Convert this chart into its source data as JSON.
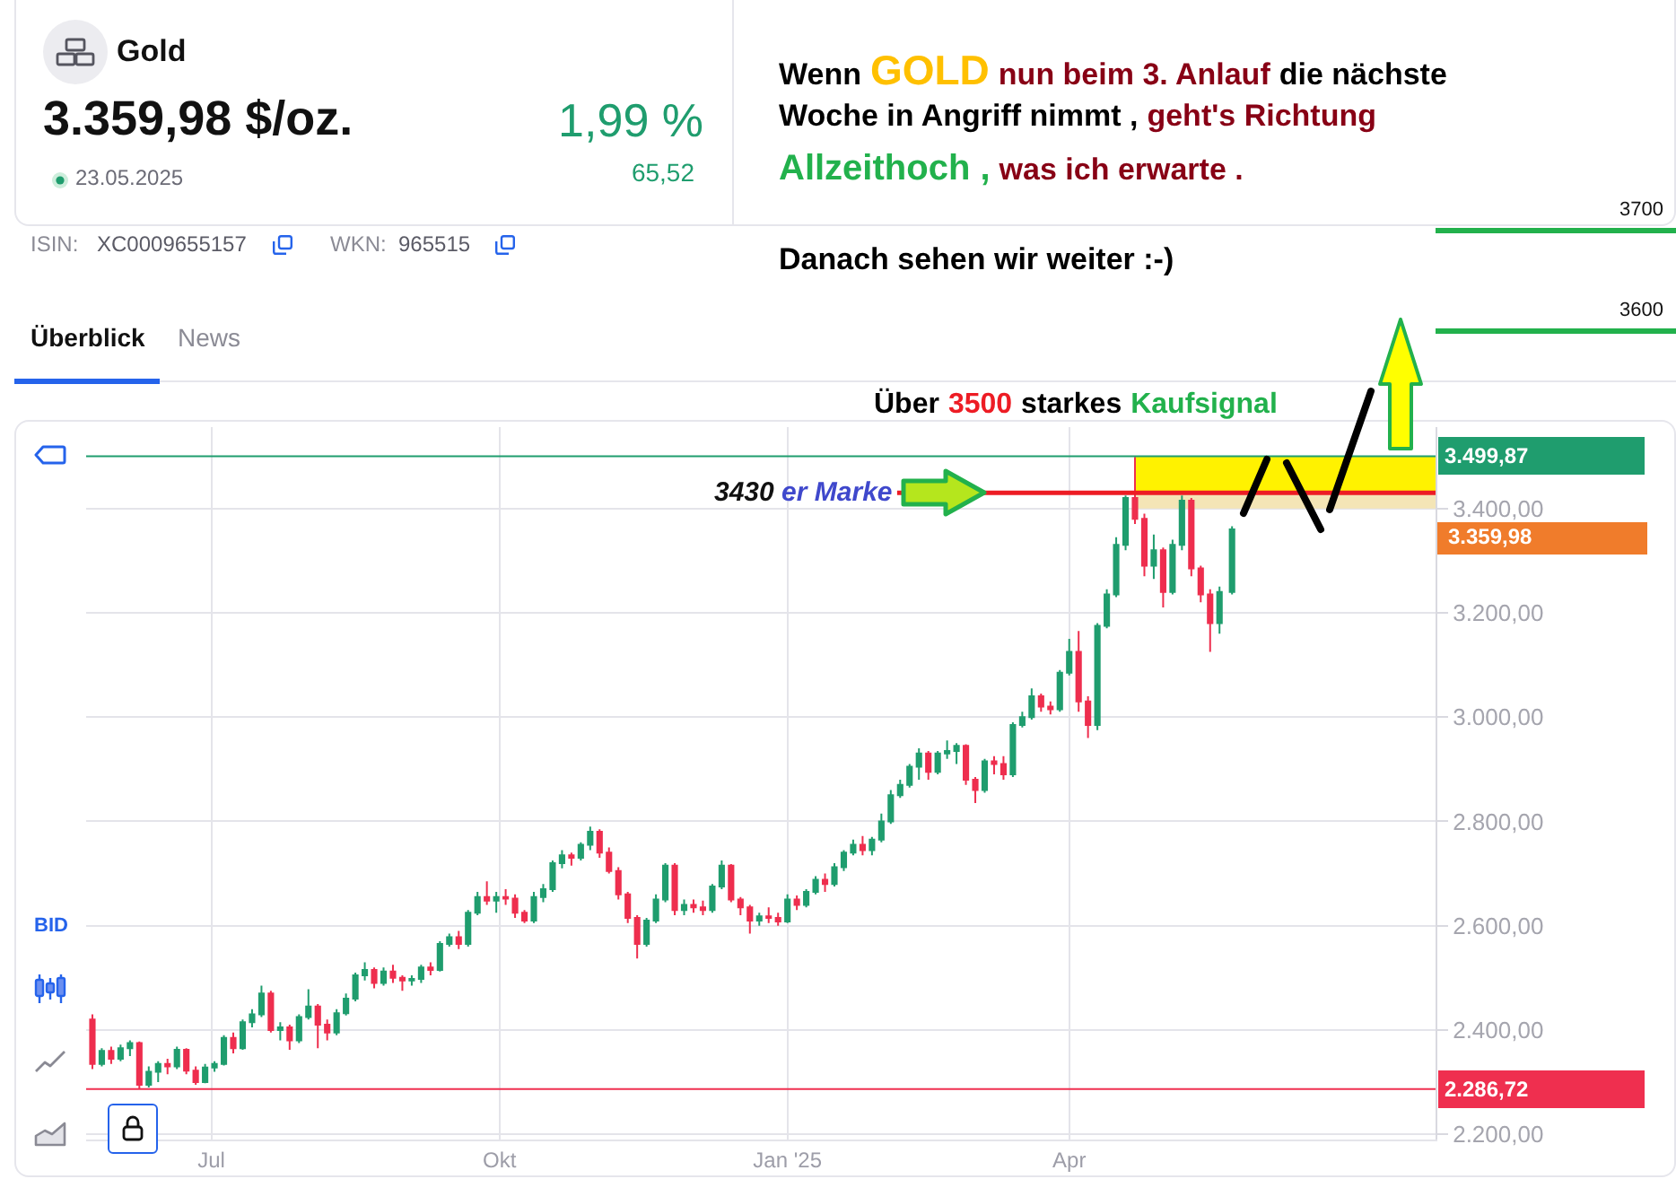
{
  "chart_data": {
    "type": "candlestick",
    "title": "Gold",
    "subtitle": "3.359,98 $/oz.",
    "x": [
      "2024-05-24",
      "2024-05-27",
      "2024-05-30",
      "2024-06-02",
      "2024-06-05",
      "2024-06-08",
      "2024-06-11",
      "2024-06-14",
      "2024-06-17",
      "2024-06-20",
      "2024-06-23",
      "2024-06-26",
      "2024-06-29",
      "2024-07-02",
      "2024-07-05",
      "2024-07-08",
      "2024-07-11",
      "2024-07-14",
      "2024-07-17",
      "2024-07-20",
      "2024-07-23",
      "2024-07-26",
      "2024-07-29",
      "2024-08-01",
      "2024-08-04",
      "2024-08-07",
      "2024-08-10",
      "2024-08-13",
      "2024-08-16",
      "2024-08-19",
      "2024-08-22",
      "2024-08-25",
      "2024-08-28",
      "2024-08-31",
      "2024-09-03",
      "2024-09-06",
      "2024-09-09",
      "2024-09-12",
      "2024-09-15",
      "2024-09-18",
      "2024-09-21",
      "2024-09-24",
      "2024-09-27",
      "2024-09-30",
      "2024-10-03",
      "2024-10-06",
      "2024-10-09",
      "2024-10-12",
      "2024-10-15",
      "2024-10-18",
      "2024-10-21",
      "2024-10-24",
      "2024-10-27",
      "2024-10-30",
      "2024-11-02",
      "2024-11-05",
      "2024-11-08",
      "2024-11-11",
      "2024-11-14",
      "2024-11-17",
      "2024-11-20",
      "2024-11-23",
      "2024-11-26",
      "2024-11-29",
      "2024-12-02",
      "2024-12-05",
      "2024-12-08",
      "2024-12-11",
      "2024-12-14",
      "2024-12-17",
      "2024-12-20",
      "2024-12-23",
      "2024-12-26",
      "2024-12-29",
      "2025-01-01",
      "2025-01-04",
      "2025-01-07",
      "2025-01-10",
      "2025-01-13",
      "2025-01-16",
      "2025-01-19",
      "2025-01-22",
      "2025-01-25",
      "2025-01-28",
      "2025-01-31",
      "2025-02-03",
      "2025-02-06",
      "2025-02-09",
      "2025-02-12",
      "2025-02-15",
      "2025-02-18",
      "2025-02-21",
      "2025-02-24",
      "2025-02-27",
      "2025-03-02",
      "2025-03-05",
      "2025-03-08",
      "2025-03-11",
      "2025-03-14",
      "2025-03-17",
      "2025-03-20",
      "2025-03-23",
      "2025-03-26",
      "2025-03-29",
      "2025-04-01",
      "2025-04-04",
      "2025-04-07",
      "2025-04-10",
      "2025-04-13",
      "2025-04-16",
      "2025-04-19",
      "2025-04-22",
      "2025-04-25",
      "2025-04-28",
      "2025-05-01",
      "2025-05-04",
      "2025-05-07",
      "2025-05-10",
      "2025-05-13",
      "2025-05-16",
      "2025-05-19",
      "2025-05-23"
    ],
    "ohlc": [
      [
        2420,
        2430,
        2325,
        2335
      ],
      [
        2335,
        2365,
        2330,
        2360
      ],
      [
        2360,
        2368,
        2335,
        2345
      ],
      [
        2345,
        2372,
        2340,
        2365
      ],
      [
        2365,
        2380,
        2350,
        2375
      ],
      [
        2375,
        2378,
        2288,
        2295
      ],
      [
        2295,
        2330,
        2290,
        2320
      ],
      [
        2320,
        2340,
        2300,
        2335
      ],
      [
        2335,
        2345,
        2315,
        2330
      ],
      [
        2330,
        2368,
        2325,
        2362
      ],
      [
        2362,
        2365,
        2315,
        2322
      ],
      [
        2322,
        2330,
        2295,
        2300
      ],
      [
        2300,
        2335,
        2298,
        2328
      ],
      [
        2328,
        2340,
        2320,
        2335
      ],
      [
        2335,
        2390,
        2332,
        2385
      ],
      [
        2385,
        2395,
        2355,
        2365
      ],
      [
        2365,
        2420,
        2362,
        2415
      ],
      [
        2415,
        2440,
        2405,
        2430
      ],
      [
        2430,
        2485,
        2425,
        2470
      ],
      [
        2470,
        2475,
        2395,
        2400
      ],
      [
        2400,
        2415,
        2380,
        2405
      ],
      [
        2405,
        2410,
        2362,
        2380
      ],
      [
        2380,
        2430,
        2375,
        2425
      ],
      [
        2425,
        2478,
        2420,
        2445
      ],
      [
        2445,
        2450,
        2365,
        2410
      ],
      [
        2410,
        2420,
        2380,
        2395
      ],
      [
        2395,
        2440,
        2390,
        2432
      ],
      [
        2432,
        2470,
        2428,
        2460
      ],
      [
        2460,
        2510,
        2455,
        2505
      ],
      [
        2505,
        2530,
        2495,
        2515
      ],
      [
        2515,
        2520,
        2480,
        2490
      ],
      [
        2490,
        2520,
        2485,
        2512
      ],
      [
        2512,
        2525,
        2490,
        2500
      ],
      [
        2500,
        2505,
        2475,
        2495
      ],
      [
        2495,
        2505,
        2485,
        2498
      ],
      [
        2498,
        2525,
        2490,
        2520
      ],
      [
        2520,
        2530,
        2505,
        2515
      ],
      [
        2515,
        2570,
        2512,
        2565
      ],
      [
        2565,
        2585,
        2560,
        2578
      ],
      [
        2578,
        2590,
        2555,
        2565
      ],
      [
        2565,
        2630,
        2560,
        2625
      ],
      [
        2625,
        2665,
        2620,
        2655
      ],
      [
        2655,
        2685,
        2640,
        2648
      ],
      [
        2648,
        2665,
        2625,
        2655
      ],
      [
        2655,
        2670,
        2640,
        2652
      ],
      [
        2652,
        2660,
        2615,
        2625
      ],
      [
        2625,
        2630,
        2605,
        2610
      ],
      [
        2610,
        2665,
        2605,
        2655
      ],
      [
        2655,
        2680,
        2645,
        2670
      ],
      [
        2670,
        2725,
        2665,
        2720
      ],
      [
        2720,
        2745,
        2710,
        2735
      ],
      [
        2735,
        2740,
        2715,
        2730
      ],
      [
        2730,
        2760,
        2725,
        2755
      ],
      [
        2755,
        2790,
        2745,
        2780
      ],
      [
        2780,
        2785,
        2730,
        2740
      ],
      [
        2740,
        2750,
        2700,
        2705
      ],
      [
        2705,
        2712,
        2650,
        2660
      ],
      [
        2660,
        2665,
        2605,
        2615
      ],
      [
        2615,
        2620,
        2537,
        2565
      ],
      [
        2565,
        2615,
        2560,
        2610
      ],
      [
        2610,
        2660,
        2605,
        2650
      ],
      [
        2650,
        2720,
        2645,
        2715
      ],
      [
        2715,
        2720,
        2620,
        2630
      ],
      [
        2630,
        2650,
        2620,
        2640
      ],
      [
        2640,
        2650,
        2625,
        2635
      ],
      [
        2635,
        2648,
        2620,
        2630
      ],
      [
        2630,
        2680,
        2625,
        2675
      ],
      [
        2675,
        2725,
        2670,
        2715
      ],
      [
        2715,
        2718,
        2645,
        2650
      ],
      [
        2650,
        2655,
        2620,
        2635
      ],
      [
        2635,
        2640,
        2585,
        2610
      ],
      [
        2610,
        2625,
        2600,
        2618
      ],
      [
        2618,
        2635,
        2605,
        2615
      ],
      [
        2615,
        2625,
        2600,
        2608
      ],
      [
        2608,
        2660,
        2605,
        2650
      ],
      [
        2650,
        2658,
        2630,
        2640
      ],
      [
        2640,
        2670,
        2635,
        2665
      ],
      [
        2665,
        2695,
        2660,
        2688
      ],
      [
        2688,
        2700,
        2665,
        2680
      ],
      [
        2680,
        2720,
        2675,
        2712
      ],
      [
        2712,
        2745,
        2705,
        2740
      ],
      [
        2740,
        2765,
        2735,
        2755
      ],
      [
        2755,
        2772,
        2735,
        2745
      ],
      [
        2745,
        2770,
        2735,
        2765
      ],
      [
        2765,
        2815,
        2760,
        2800
      ],
      [
        2800,
        2860,
        2795,
        2850
      ],
      [
        2850,
        2880,
        2845,
        2870
      ],
      [
        2870,
        2910,
        2865,
        2905
      ],
      [
        2905,
        2940,
        2880,
        2930
      ],
      [
        2930,
        2935,
        2880,
        2895
      ],
      [
        2895,
        2935,
        2890,
        2930
      ],
      [
        2930,
        2955,
        2920,
        2935
      ],
      [
        2935,
        2950,
        2910,
        2945
      ],
      [
        2945,
        2948,
        2870,
        2880
      ],
      [
        2880,
        2885,
        2835,
        2860
      ],
      [
        2860,
        2920,
        2855,
        2915
      ],
      [
        2915,
        2925,
        2890,
        2910
      ],
      [
        2910,
        2925,
        2880,
        2890
      ],
      [
        2890,
        2990,
        2885,
        2985
      ],
      [
        2985,
        3010,
        2980,
        3000
      ],
      [
        3000,
        3055,
        2995,
        3040
      ],
      [
        3040,
        3045,
        3010,
        3020
      ],
      [
        3020,
        3030,
        3005,
        3015
      ],
      [
        3015,
        3090,
        3010,
        3085
      ],
      [
        3085,
        3150,
        3080,
        3125
      ],
      [
        3125,
        3165,
        3010,
        3030
      ],
      [
        3030,
        3040,
        2960,
        2985
      ],
      [
        2985,
        3180,
        2975,
        3175
      ],
      [
        3175,
        3245,
        3170,
        3235
      ],
      [
        3235,
        3345,
        3230,
        3330
      ],
      [
        3330,
        3425,
        3320,
        3420
      ],
      [
        3420,
        3499,
        3370,
        3380
      ],
      [
        3380,
        3390,
        3270,
        3290
      ],
      [
        3290,
        3350,
        3265,
        3320
      ],
      [
        3320,
        3325,
        3210,
        3240
      ],
      [
        3240,
        3340,
        3235,
        3330
      ],
      [
        3330,
        3425,
        3320,
        3415
      ],
      [
        3415,
        3420,
        3270,
        3285
      ],
      [
        3285,
        3290,
        3220,
        3235
      ],
      [
        3235,
        3245,
        3125,
        3180
      ],
      [
        3180,
        3250,
        3160,
        3240
      ],
      [
        3240,
        3366,
        3235,
        3359.98
      ]
    ],
    "colors": [
      "#ee2e4e",
      "#1f9d6e",
      "#ee2e4e",
      "#1f9d6e",
      "#1f9d6e",
      "#ee2e4e",
      "#1f9d6e",
      "#1f9d6e",
      "#ee2e4e",
      "#1f9d6e",
      "#ee2e4e",
      "#ee2e4e",
      "#1f9d6e",
      "#1f9d6e",
      "#1f9d6e",
      "#ee2e4e",
      "#1f9d6e",
      "#1f9d6e",
      "#1f9d6e",
      "#ee2e4e",
      "#1f9d6e",
      "#ee2e4e",
      "#1f9d6e",
      "#1f9d6e",
      "#ee2e4e",
      "#ee2e4e",
      "#1f9d6e",
      "#1f9d6e",
      "#1f9d6e",
      "#1f9d6e",
      "#ee2e4e",
      "#1f9d6e",
      "#ee2e4e",
      "#ee2e4e",
      "#1f9d6e",
      "#1f9d6e",
      "#ee2e4e",
      "#1f9d6e",
      "#1f9d6e",
      "#ee2e4e",
      "#1f9d6e",
      "#1f9d6e",
      "#ee2e4e",
      "#1f9d6e",
      "#ee2e4e",
      "#ee2e4e",
      "#ee2e4e",
      "#1f9d6e",
      "#1f9d6e",
      "#1f9d6e",
      "#1f9d6e",
      "#ee2e4e",
      "#1f9d6e",
      "#1f9d6e",
      "#ee2e4e",
      "#ee2e4e",
      "#ee2e4e",
      "#ee2e4e",
      "#ee2e4e",
      "#1f9d6e",
      "#1f9d6e",
      "#1f9d6e",
      "#ee2e4e",
      "#1f9d6e",
      "#ee2e4e",
      "#ee2e4e",
      "#1f9d6e",
      "#1f9d6e",
      "#ee2e4e",
      "#ee2e4e",
      "#ee2e4e",
      "#1f9d6e",
      "#ee2e4e",
      "#ee2e4e",
      "#1f9d6e",
      "#ee2e4e",
      "#1f9d6e",
      "#1f9d6e",
      "#ee2e4e",
      "#1f9d6e",
      "#1f9d6e",
      "#1f9d6e",
      "#ee2e4e",
      "#1f9d6e",
      "#1f9d6e",
      "#1f9d6e",
      "#1f9d6e",
      "#1f9d6e",
      "#1f9d6e",
      "#ee2e4e",
      "#1f9d6e",
      "#1f9d6e",
      "#1f9d6e",
      "#ee2e4e",
      "#ee2e4e",
      "#1f9d6e",
      "#ee2e4e",
      "#ee2e4e",
      "#1f9d6e",
      "#1f9d6e",
      "#1f9d6e",
      "#ee2e4e",
      "#ee2e4e",
      "#1f9d6e",
      "#1f9d6e",
      "#ee2e4e",
      "#ee2e4e",
      "#1f9d6e",
      "#1f9d6e",
      "#1f9d6e",
      "#1f9d6e",
      "#ee2e4e",
      "#ee2e4e",
      "#1f9d6e",
      "#ee2e4e",
      "#1f9d6e",
      "#1f9d6e",
      "#ee2e4e",
      "#ee2e4e",
      "#ee2e4e",
      "#1f9d6e",
      "#1f9d6e"
    ],
    "xlim": [
      "2024-05-22",
      "2025-07-27"
    ],
    "xticks": [
      {
        "value": "2024-07-01",
        "label": "Jul"
      },
      {
        "value": "2024-10-01",
        "label": "Okt"
      },
      {
        "value": "2025-01-01",
        "label": "Jan '25"
      },
      {
        "value": "2025-04-01",
        "label": "Apr"
      }
    ],
    "ylim": [
      2190,
      3556
    ],
    "yticks": [
      {
        "value": 2200,
        "label": "2.200,00"
      },
      {
        "value": 2400,
        "label": "2.400,00"
      },
      {
        "value": 2600,
        "label": "2.600,00"
      },
      {
        "value": 2800,
        "label": "2.800,00"
      },
      {
        "value": 3000,
        "label": "3.000,00"
      },
      {
        "value": 3200,
        "label": "3.200,00"
      },
      {
        "value": 3400,
        "label": "3.400,00"
      }
    ],
    "grid": true,
    "ref_lines": [
      {
        "axis": "y",
        "value": 3499.87,
        "label": "3.499,87",
        "color": "#1f9d6e"
      },
      {
        "axis": "y",
        "value": 3430,
        "label": "3430 er Marke",
        "color": "#ed1c24"
      },
      {
        "axis": "y",
        "value": 2286.72,
        "label": "2.286,72",
        "color": "#ef2f4f"
      }
    ],
    "bands": [
      {
        "axis": "y",
        "from": 3430,
        "to": 3499.87,
        "color": "#fff200"
      },
      {
        "axis": "y",
        "from": 3400,
        "to": 3430,
        "color": "#f4e5b6"
      }
    ],
    "annotations": [
      "1,99 %",
      "65,52",
      "23.05.2025",
      "ISIN:",
      "XC0009655157",
      "WKN:",
      "965515",
      "Überblick",
      "News",
      "Wenn",
      "GOLD",
      "nun beim 3. Anlauf",
      "die nächste",
      "Woche in Angriff nimmt ,",
      "geht's Richtung",
      "Allzeithoch ,",
      "was ich erwarte .",
      "Danach sehen wir weiter :-)",
      "Über",
      "3500",
      "starkes",
      "Kaufsignal",
      "3700",
      "3600",
      "BID",
      "3.359,98"
    ]
  }
}
